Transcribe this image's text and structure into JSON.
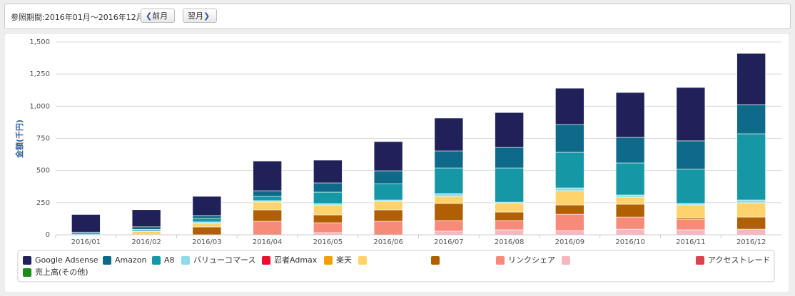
{
  "header": {
    "period": "参照期間:2016年01月～2016年12月",
    "prev_button": "前月",
    "next_button": "翌月"
  },
  "chart_data": {
    "type": "bar",
    "stacked": true,
    "y_label": "金額(千円)",
    "grid": true,
    "categories": [
      "2016/01",
      "2016/02",
      "2016/03",
      "2016/04",
      "2016/05",
      "2016/06",
      "2016/07",
      "2016/08",
      "2016/09",
      "2016/10",
      "2016/11",
      "2016/12"
    ],
    "ylim": [
      0,
      1500
    ],
    "yticks": [
      0,
      250,
      500,
      750,
      {
        "value": 1000,
        "label": "1,000"
      },
      {
        "value": 1250,
        "label": "1,250"
      },
      {
        "value": 1500,
        "label": "1,500"
      }
    ],
    "series": [
      {
        "name": "Google Adsense",
        "color": "#21215a",
        "values": [
          137,
          133,
          149,
          231,
          177,
          227,
          255,
          271,
          282,
          349,
          415,
          398
        ]
      },
      {
        "name": "Amazon",
        "color": "#0e6a88",
        "values": [
          8,
          20,
          22,
          44,
          72,
          100,
          133,
          160,
          216,
          199,
          221,
          227
        ]
      },
      {
        "name": "A8",
        "color": "#1697a6",
        "values": [
          10,
          10,
          28,
          33,
          89,
          127,
          199,
          266,
          277,
          249,
          266,
          515
        ]
      },
      {
        "name": "バリューコマース",
        "color": "#8fdaea",
        "values": [
          3,
          8,
          11,
          11,
          11,
          11,
          22,
          11,
          22,
          17,
          11,
          22
        ]
      },
      {
        "name": "忍者Admax",
        "color": "#e8112d",
        "values": [
          0,
          0,
          0,
          0,
          0,
          0,
          0,
          0,
          0,
          0,
          0,
          0
        ]
      },
      {
        "name": "楽天",
        "color": "#f29f05",
        "values": [
          0,
          0,
          0,
          0,
          0,
          0,
          0,
          0,
          0,
          0,
          0,
          0
        ]
      },
      {
        "color": "#ffd36b",
        "values": [
          0,
          22,
          28,
          61,
          77,
          66,
          55,
          66,
          111,
          55,
          100,
          111
        ]
      },
      {
        "color": "#b06002",
        "values": [
          0,
          0,
          61,
          89,
          61,
          89,
          133,
          66,
          72,
          100,
          11,
          94
        ]
      },
      {
        "name": "リンクシェア",
        "color": "#f88a7a",
        "values": [
          0,
          0,
          0,
          105,
          77,
          105,
          83,
          72,
          127,
          94,
          83,
          0
        ]
      },
      {
        "color": "#f7b6c2",
        "values": [
          0,
          2,
          0,
          0,
          17,
          0,
          28,
          39,
          33,
          44,
          39,
          44
        ]
      },
      {
        "name": "アクセストレード",
        "color": "#d9434e",
        "values": [
          0,
          0,
          0,
          0,
          0,
          0,
          0,
          0,
          0,
          0,
          0,
          0
        ]
      },
      {
        "name": "売上高(その他)",
        "color": "#1a8a1a",
        "values": [
          0,
          0,
          0,
          0,
          0,
          0,
          0,
          0,
          0,
          0,
          0,
          0
        ]
      }
    ]
  }
}
